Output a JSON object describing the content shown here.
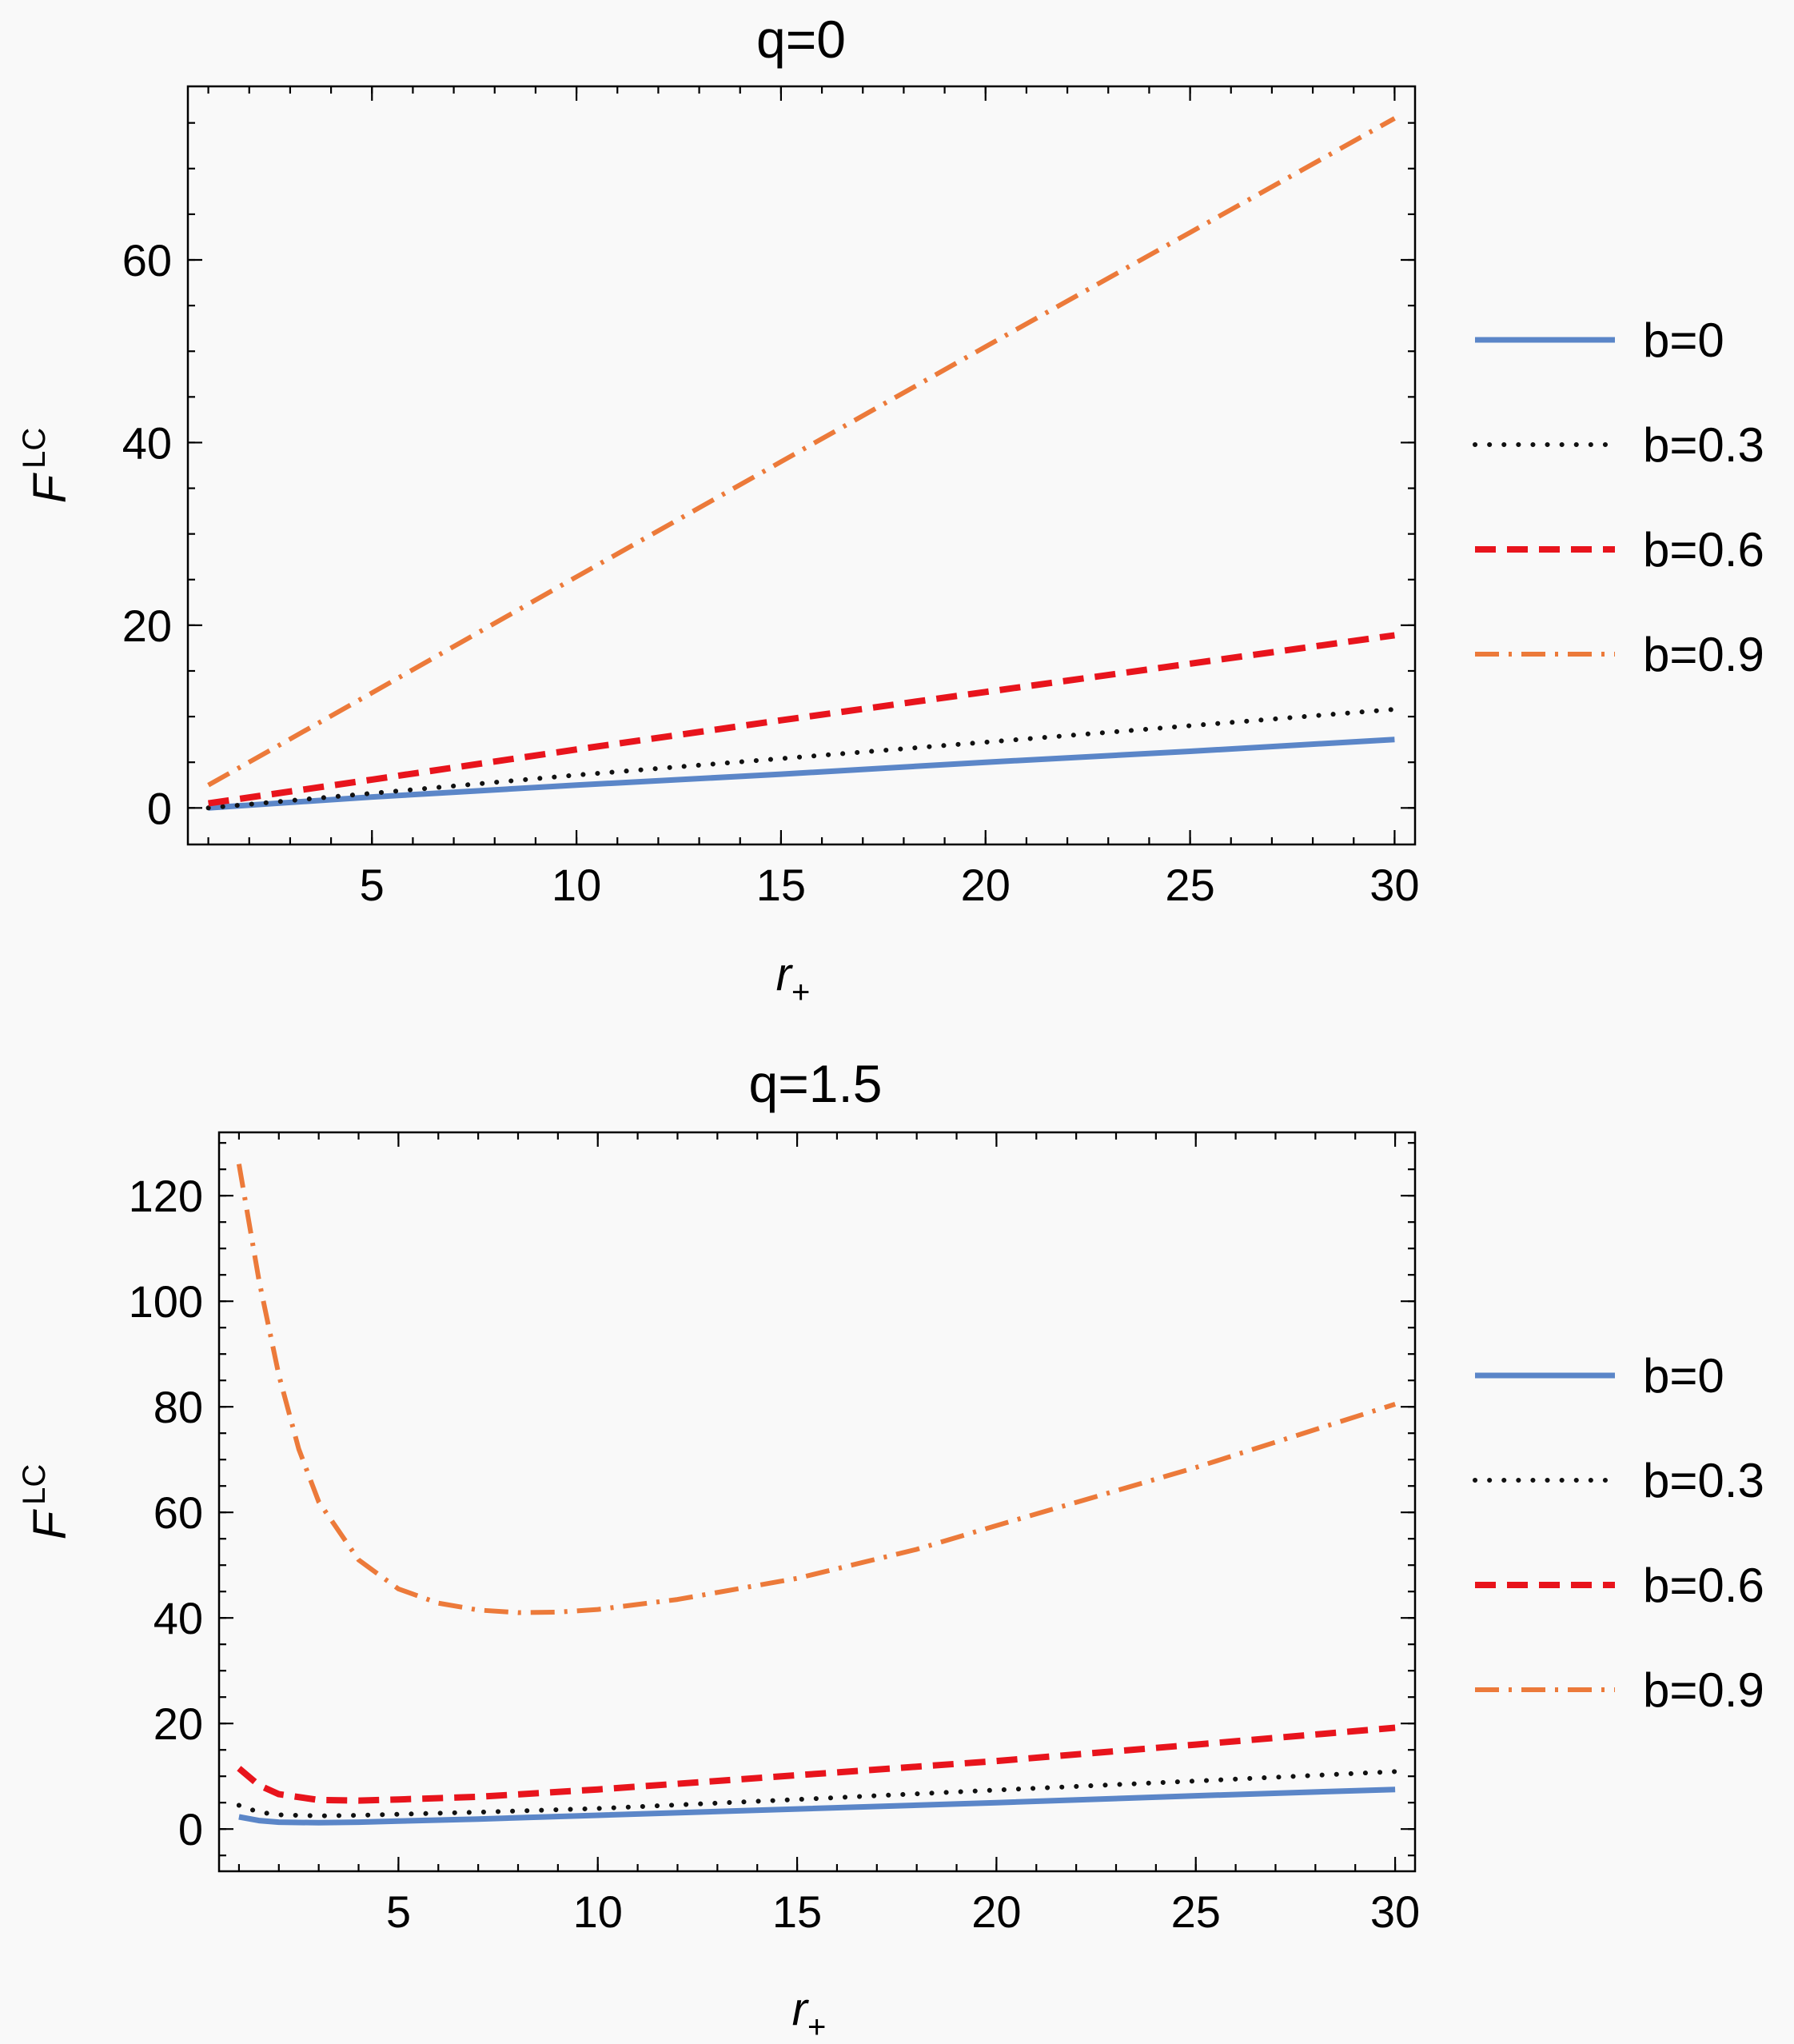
{
  "chart_data": [
    {
      "type": "line",
      "title": "q=0",
      "xlabel": "r₊",
      "ylabel": "F^LC",
      "ylabel_main": "F",
      "ylabel_sup": "LC",
      "xlabel_main": "r",
      "xlabel_sub": "+",
      "xlim": [
        0.5,
        30.5
      ],
      "ylim": [
        -4,
        79
      ],
      "xticks": [
        5,
        10,
        15,
        20,
        25,
        30
      ],
      "yticks": [
        0,
        20,
        40,
        60
      ],
      "legend_position": "right",
      "series": [
        {
          "name": "b=0",
          "x": [
            1,
            5,
            10,
            15,
            20,
            25,
            30
          ],
          "y": [
            0,
            1.2,
            2.5,
            3.7,
            5.0,
            6.2,
            7.5
          ]
        },
        {
          "name": "b=0.3",
          "x": [
            1,
            5,
            10,
            15,
            20,
            25,
            30
          ],
          "y": [
            0,
            1.6,
            3.6,
            5.4,
            7.2,
            9.0,
            10.8
          ]
        },
        {
          "name": "b=0.6",
          "x": [
            1,
            5,
            10,
            15,
            20,
            25,
            30
          ],
          "y": [
            0.5,
            3.1,
            6.4,
            9.6,
            12.7,
            15.8,
            18.9
          ]
        },
        {
          "name": "b=0.9",
          "x": [
            1,
            5,
            10,
            15,
            20,
            25,
            30
          ],
          "y": [
            2.5,
            12.6,
            25.3,
            37.9,
            50.5,
            63.0,
            75.5
          ]
        }
      ]
    },
    {
      "type": "line",
      "title": "q=1.5",
      "xlabel": "r₊",
      "ylabel": "F^LC",
      "ylabel_main": "F",
      "ylabel_sup": "LC",
      "xlabel_main": "r",
      "xlabel_sub": "+",
      "xlim": [
        0.5,
        30.5
      ],
      "ylim": [
        -8,
        132
      ],
      "xticks": [
        5,
        10,
        15,
        20,
        25,
        30
      ],
      "yticks": [
        0,
        20,
        40,
        60,
        80,
        100,
        120
      ],
      "legend_position": "right",
      "series": [
        {
          "name": "b=0",
          "x": [
            1,
            1.5,
            2,
            3,
            4,
            5,
            7,
            10,
            15,
            20,
            25,
            30
          ],
          "y": [
            2.3,
            1.6,
            1.3,
            1.2,
            1.3,
            1.5,
            1.9,
            2.6,
            3.8,
            5.0,
            6.3,
            7.5
          ]
        },
        {
          "name": "b=0.3",
          "x": [
            1,
            1.5,
            2,
            3,
            4,
            5,
            7,
            10,
            15,
            20,
            25,
            30
          ],
          "y": [
            4.5,
            3.2,
            2.7,
            2.5,
            2.6,
            2.8,
            3.2,
            3.9,
            5.6,
            7.4,
            9.1,
            10.9
          ]
        },
        {
          "name": "b=0.6",
          "x": [
            1,
            1.5,
            2,
            3,
            4,
            5,
            7,
            10,
            15,
            20,
            25,
            30
          ],
          "y": [
            11.5,
            8.3,
            6.6,
            5.5,
            5.4,
            5.6,
            6.1,
            7.5,
            10.2,
            12.9,
            16.0,
            19.2
          ]
        },
        {
          "name": "b=0.9",
          "x": [
            1,
            1.5,
            2,
            2.5,
            3,
            4,
            5,
            6,
            7,
            8,
            9,
            10,
            12,
            15,
            18,
            20,
            25,
            30
          ],
          "y": [
            126,
            104,
            86,
            72,
            62,
            51,
            45.5,
            42.8,
            41.5,
            41,
            41.1,
            41.6,
            43.5,
            47.5,
            53,
            57.5,
            68.5,
            80.5
          ]
        }
      ]
    }
  ]
}
